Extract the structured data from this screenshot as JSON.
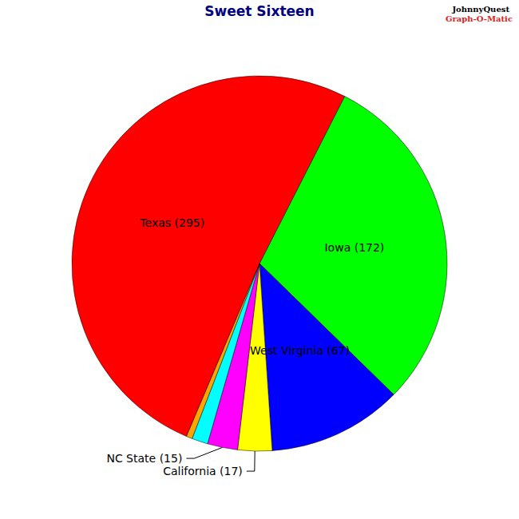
{
  "chart_data": {
    "type": "pie",
    "title": "Sweet Sixteen",
    "categories": [
      "Iowa (172)",
      "West Virginia (67)",
      "California (17)",
      "NC State (15)",
      null,
      null,
      "Texas (295)"
    ],
    "values": [
      172,
      67,
      17,
      15,
      8,
      3,
      295
    ],
    "colors": [
      "#00ff00",
      "#0000ff",
      "#ffff00",
      "#ff00ff",
      "#00ffff",
      "#ffa500",
      "#ff0000"
    ],
    "data_labels": true,
    "annotations": [
      "JohnnyQuest",
      "Graph-O-Matic"
    ]
  }
}
